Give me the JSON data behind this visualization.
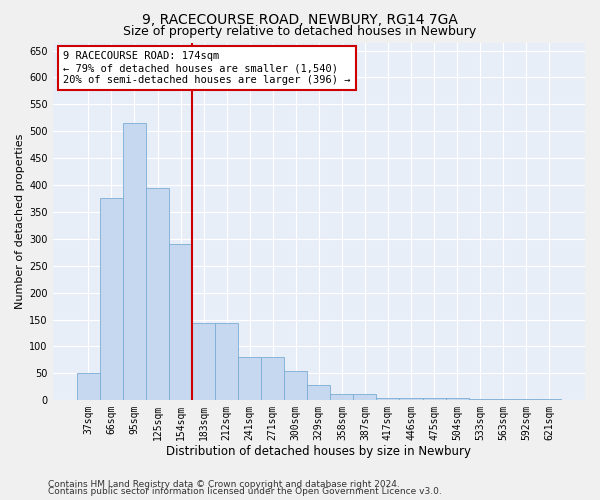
{
  "title1": "9, RACECOURSE ROAD, NEWBURY, RG14 7GA",
  "title2": "Size of property relative to detached houses in Newbury",
  "xlabel": "Distribution of detached houses by size in Newbury",
  "ylabel": "Number of detached properties",
  "categories": [
    "37sqm",
    "66sqm",
    "95sqm",
    "125sqm",
    "154sqm",
    "183sqm",
    "212sqm",
    "241sqm",
    "271sqm",
    "300sqm",
    "329sqm",
    "358sqm",
    "387sqm",
    "417sqm",
    "446sqm",
    "475sqm",
    "504sqm",
    "533sqm",
    "563sqm",
    "592sqm",
    "621sqm"
  ],
  "values": [
    50,
    375,
    515,
    395,
    290,
    143,
    143,
    80,
    80,
    55,
    28,
    12,
    12,
    5,
    5,
    5,
    5,
    3,
    3,
    3,
    3
  ],
  "bar_color": "#c5d8f0",
  "bar_edge_color": "#7aadd4",
  "vline_x_index": 5,
  "vline_color": "#cc0000",
  "ylim_max": 665,
  "yticks": [
    0,
    50,
    100,
    150,
    200,
    250,
    300,
    350,
    400,
    450,
    500,
    550,
    600,
    650
  ],
  "annotation_line1": "9 RACECOURSE ROAD: 174sqm",
  "annotation_line2": "← 79% of detached houses are smaller (1,540)",
  "annotation_line3": "20% of semi-detached houses are larger (396) →",
  "annotation_box_color": "#ffffff",
  "annotation_box_edge": "#cc0000",
  "footer1": "Contains HM Land Registry data © Crown copyright and database right 2024.",
  "footer2": "Contains public sector information licensed under the Open Government Licence v3.0.",
  "plot_bg_color": "#e8eef8",
  "grid_color": "#ffffff",
  "title1_fontsize": 10,
  "title2_fontsize": 9,
  "xlabel_fontsize": 8.5,
  "ylabel_fontsize": 8,
  "tick_fontsize": 7,
  "annotation_fontsize": 7.5,
  "footer_fontsize": 6.5
}
